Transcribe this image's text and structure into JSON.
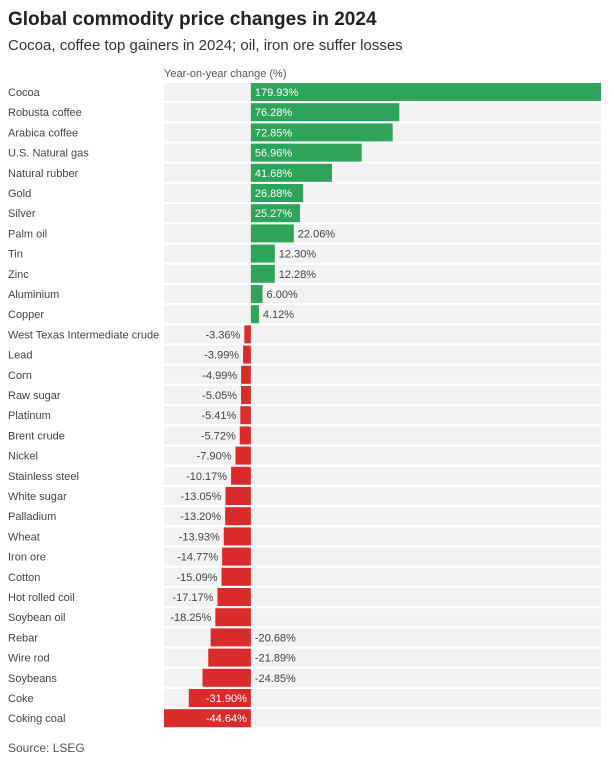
{
  "chart_data": {
    "type": "bar",
    "orientation": "horizontal",
    "title": "Global commodity price changes in 2024",
    "subtitle": "Cocoa, coffee top gainers in 2024; oil, iron ore suffer losses",
    "xlabel": "Year-on-year change (%)",
    "source": "Source: LSEG",
    "xlim": [
      -44.64,
      179.93
    ],
    "grid": false,
    "categories": [
      "Cocoa",
      "Robusta coffee",
      "Arabica coffee",
      "U.S. Natural gas",
      "Natural rubber",
      "Gold",
      "Silver",
      "Palm oil",
      "Tin",
      "Zinc",
      "Aluminium",
      "Copper",
      "West Texas Intermediate crude",
      "Lead",
      "Corn",
      "Raw sugar",
      "Platinum",
      "Brent crude",
      "Nickel",
      "Stainless steel",
      "White sugar",
      "Palladium",
      "Wheat",
      "Iron ore",
      "Cotton",
      "Hot rolled coil",
      "Soybean oil",
      "Rebar",
      "Wire rod",
      "Soybeans",
      "Coke",
      "Coking coal"
    ],
    "values": [
      179.93,
      76.28,
      72.85,
      56.96,
      41.68,
      26.88,
      25.27,
      22.06,
      12.3,
      12.28,
      6.0,
      4.12,
      -3.36,
      -3.99,
      -4.99,
      -5.05,
      -5.41,
      -5.72,
      -7.9,
      -10.17,
      -13.05,
      -13.2,
      -13.93,
      -14.77,
      -15.09,
      -17.17,
      -18.25,
      -20.68,
      -21.89,
      -24.85,
      -31.9,
      -44.64
    ],
    "value_labels": [
      "179.93%",
      "76.28%",
      "72.85%",
      "56.96%",
      "41.68%",
      "26.88%",
      "25.27%",
      "22.06%",
      "12.30%",
      "12.28%",
      "6.00%",
      "4.12%",
      "-3.36%",
      "-3.99%",
      "-4.99%",
      "-5.05%",
      "-5.41%",
      "-5.72%",
      "-7.90%",
      "-10.17%",
      "-13.05%",
      "-13.20%",
      "-13.93%",
      "-14.77%",
      "-15.09%",
      "-17.17%",
      "-18.25%",
      "-20.68%",
      "-21.89%",
      "-24.85%",
      "-31.90%",
      "-44.64%"
    ],
    "colors": {
      "positive": "#2ea35a",
      "negative": "#d92b2b",
      "row_background": "#f2f2f2",
      "label_inside": "#ffffff",
      "label_outside": "#444444"
    }
  }
}
